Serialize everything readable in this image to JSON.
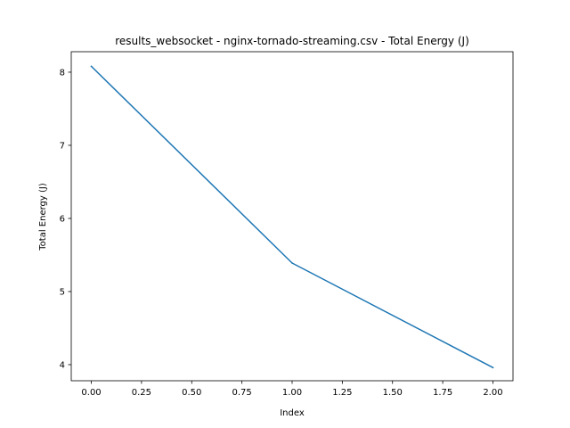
{
  "chart_data": {
    "type": "line",
    "title": "results_websocket - nginx-tornado-streaming.csv - Total Energy (J)",
    "xlabel": "Index",
    "ylabel": "Total Energy (J)",
    "xlim": [
      -0.1,
      2.1
    ],
    "ylim": [
      3.78,
      8.28
    ],
    "xticks": [
      0.0,
      0.25,
      0.5,
      0.75,
      1.0,
      1.25,
      1.5,
      1.75,
      2.0
    ],
    "xtick_labels": [
      "0.00",
      "0.25",
      "0.50",
      "0.75",
      "1.00",
      "1.25",
      "1.50",
      "1.75",
      "2.00"
    ],
    "yticks": [
      4,
      5,
      6,
      7,
      8
    ],
    "ytick_labels": [
      "4",
      "5",
      "6",
      "7",
      "8"
    ],
    "grid": false,
    "series": [
      {
        "x": [
          0,
          1,
          2
        ],
        "values": [
          8.08,
          5.39,
          3.96
        ],
        "color": "#1f77b4"
      }
    ]
  }
}
